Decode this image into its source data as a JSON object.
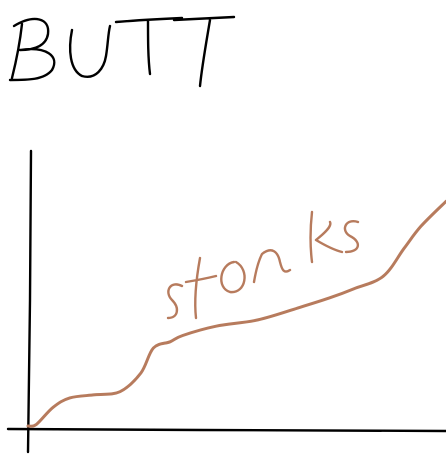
{
  "chart_data": {
    "type": "line",
    "title": "BUTT",
    "xlabel": "",
    "ylabel": "",
    "grid": false,
    "legend": "none",
    "series": [
      {
        "name": "stonks",
        "color": "#b77b5d",
        "x": [
          0,
          2,
          6,
          10,
          16,
          22,
          27,
          30,
          34,
          37,
          45,
          55,
          65,
          72,
          78,
          85,
          90,
          94,
          100
        ],
        "y": [
          0,
          0.5,
          6,
          9,
          10,
          11,
          17,
          25,
          27,
          29,
          32,
          34,
          38,
          41,
          44,
          48,
          57,
          64,
          72
        ]
      }
    ]
  }
}
